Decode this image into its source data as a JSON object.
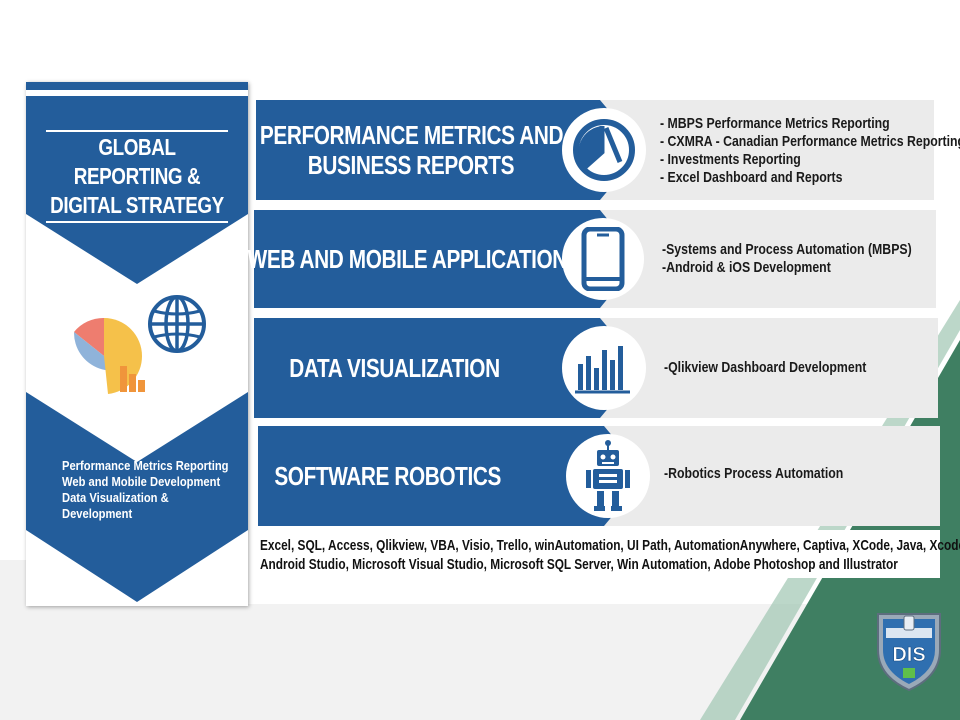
{
  "colors": {
    "brand_blue": "#235d9b",
    "panel_gray": "#ebebeb",
    "accent_green": "#4a8a6a"
  },
  "left_panel": {
    "title_line1": "GLOBAL REPORTING &",
    "title_line2": "DIGITAL STRATEGY",
    "icons": [
      "pie-bar-chart-icon",
      "globe-icon"
    ],
    "items": [
      "Performance Metrics Reporting",
      "Web and Mobile Development",
      "Data Visualization &",
      "Development"
    ]
  },
  "rows": [
    {
      "title_line1": "PERFORMANCE METRICS AND",
      "title_line2": "BUSINESS REPORTS",
      "icon": "pie-chart-icon",
      "items": [
        "- MBPS Performance Metrics Reporting",
        "- CXMRA - Canadian Performance Metrics Reporting",
        "- Investments Reporting",
        "- Excel Dashboard and Reports"
      ]
    },
    {
      "title_line1": "WEB AND MOBILE APPLICATIONS",
      "title_line2": "",
      "icon": "smartphone-icon",
      "items": [
        "-Systems and Process Automation (MBPS)",
        "-Android & iOS Development"
      ]
    },
    {
      "title_line1": "DATA VISUALIZATION",
      "title_line2": "",
      "icon": "bar-chart-icon",
      "items": [
        "-Qlikview Dashboard Development"
      ]
    },
    {
      "title_line1": "SOFTWARE ROBOTICS",
      "title_line2": "",
      "icon": "robot-icon",
      "items": [
        "-Robotics Process Automation"
      ]
    }
  ],
  "tools": {
    "line1": "Excel, SQL, Access, Qlikview, VBA, Visio, Trello, winAutomation, UI Path, AutomationAnywhere, Captiva, XCode, Java, Xcode,",
    "line2": "Android Studio, Microsoft Visual Studio, Microsoft SQL Server, Win Automation, Adobe Photoshop and Illustrator"
  },
  "badge": {
    "logo_text": "DIS"
  }
}
